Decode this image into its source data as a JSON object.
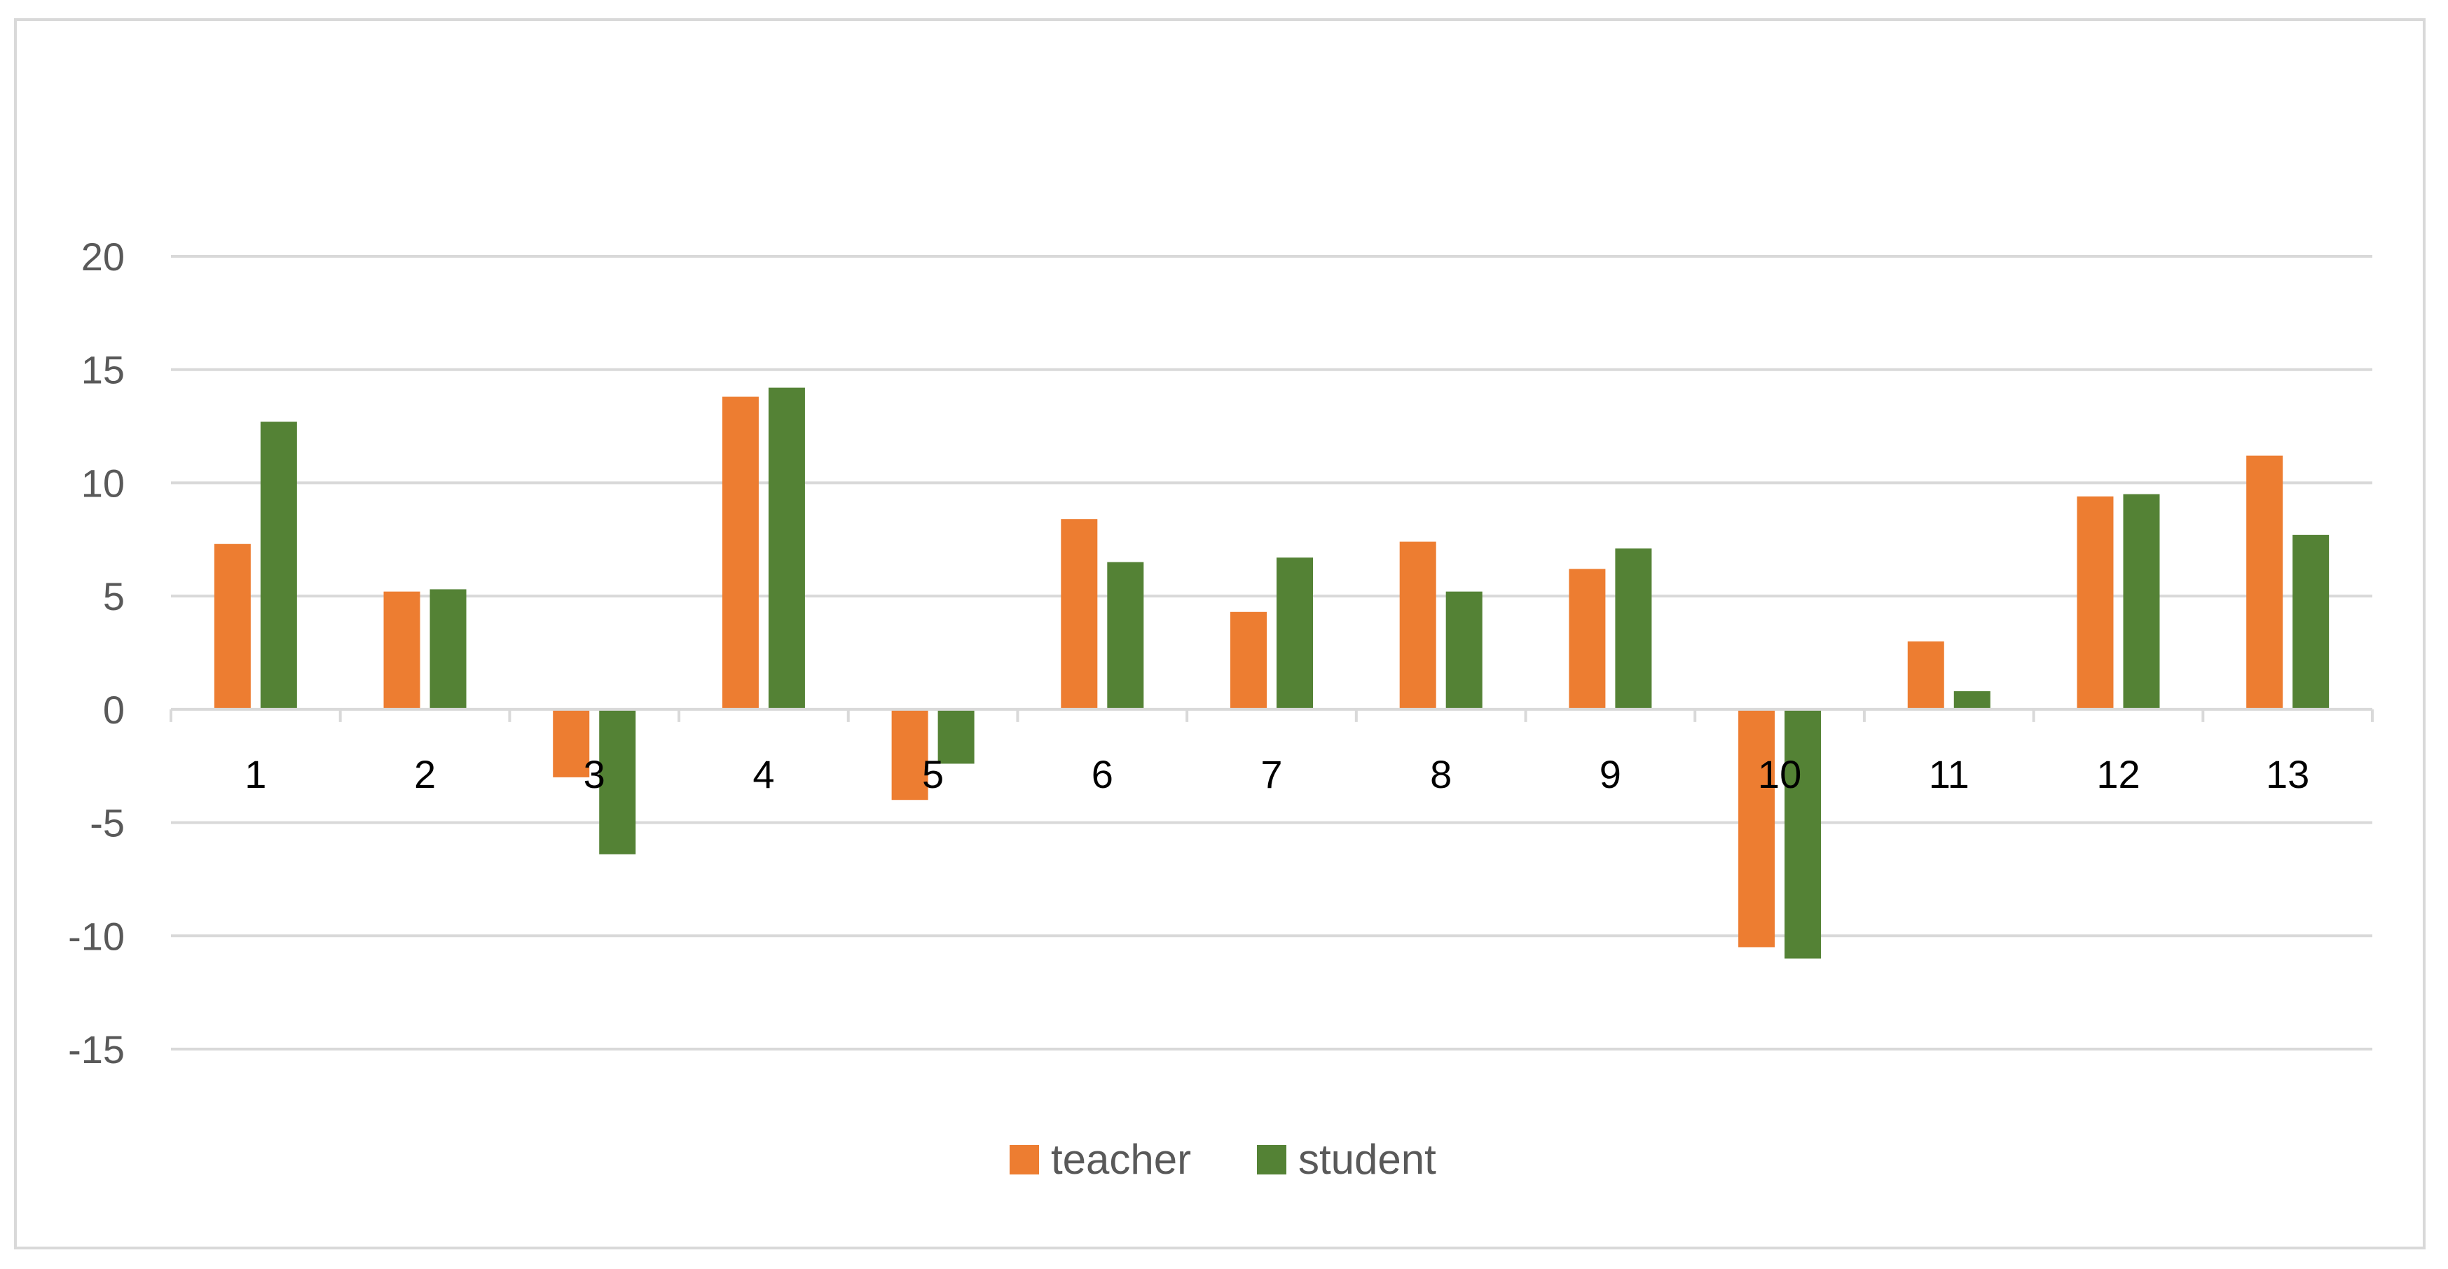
{
  "chart_data": {
    "type": "bar",
    "title": "",
    "xlabel": "",
    "ylabel": "",
    "categories": [
      "1",
      "2",
      "3",
      "4",
      "5",
      "6",
      "7",
      "8",
      "9",
      "10",
      "11",
      "12",
      "13"
    ],
    "series": [
      {
        "name": "teacher",
        "color": "#ed7d31",
        "values": [
          7.3,
          5.2,
          -3.0,
          13.8,
          -4.0,
          8.4,
          4.3,
          7.4,
          6.2,
          -10.5,
          3.0,
          9.4,
          11.2
        ]
      },
      {
        "name": "student",
        "color": "#548235",
        "values": [
          12.7,
          5.3,
          -6.4,
          14.2,
          -2.4,
          6.5,
          6.7,
          5.2,
          7.1,
          -11.0,
          0.8,
          9.5,
          7.7
        ]
      }
    ],
    "ylim": [
      -15,
      20
    ],
    "yticks": [
      20,
      15,
      10,
      5,
      0,
      -5,
      -10,
      -15
    ],
    "grid": true,
    "gridline_color": "#d9d9d9",
    "legend_position": "bottom"
  }
}
